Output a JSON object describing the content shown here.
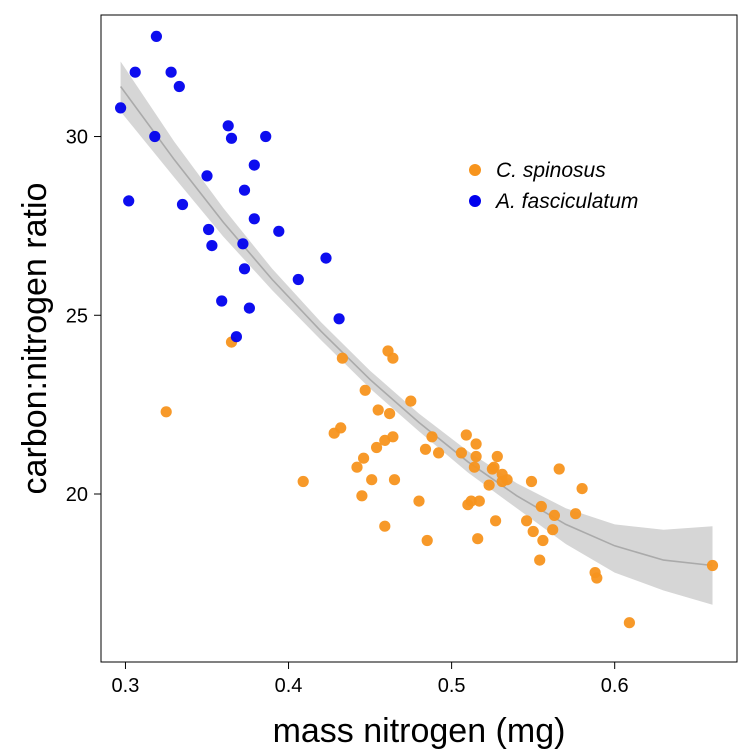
{
  "chart_data": {
    "type": "scatter",
    "xlabel": "mass nitrogen (mg)",
    "ylabel": "carbon:nitrogen ratio",
    "xlim": [
      0.285,
      0.675
    ],
    "ylim": [
      15.3,
      33.4
    ],
    "x_ticks": [
      0.3,
      0.4,
      0.5,
      0.6
    ],
    "x_tick_labels": [
      "0.3",
      "0.4",
      "0.5",
      "0.6"
    ],
    "y_ticks": [
      20,
      25,
      30
    ],
    "y_tick_labels": [
      "20",
      "25",
      "30"
    ],
    "grid": false,
    "legend_position": "top-right",
    "series": [
      {
        "name": "C. spinosus",
        "color": "#F7941D",
        "points": [
          [
            0.325,
            22.3
          ],
          [
            0.365,
            24.25
          ],
          [
            0.409,
            20.35
          ],
          [
            0.428,
            21.7
          ],
          [
            0.432,
            21.85
          ],
          [
            0.433,
            23.8
          ],
          [
            0.442,
            20.75
          ],
          [
            0.445,
            19.95
          ],
          [
            0.446,
            21.0
          ],
          [
            0.447,
            22.9
          ],
          [
            0.451,
            20.4
          ],
          [
            0.454,
            21.3
          ],
          [
            0.455,
            22.35
          ],
          [
            0.459,
            19.1
          ],
          [
            0.459,
            21.5
          ],
          [
            0.461,
            24.0
          ],
          [
            0.462,
            22.25
          ],
          [
            0.464,
            23.8
          ],
          [
            0.464,
            21.6
          ],
          [
            0.465,
            20.4
          ],
          [
            0.475,
            22.6
          ],
          [
            0.48,
            19.8
          ],
          [
            0.484,
            21.25
          ],
          [
            0.485,
            18.7
          ],
          [
            0.488,
            21.6
          ],
          [
            0.492,
            21.15
          ],
          [
            0.506,
            21.15
          ],
          [
            0.509,
            21.65
          ],
          [
            0.51,
            19.7
          ],
          [
            0.512,
            19.8
          ],
          [
            0.514,
            20.75
          ],
          [
            0.515,
            21.4
          ],
          [
            0.515,
            21.05
          ],
          [
            0.516,
            18.75
          ],
          [
            0.517,
            19.8
          ],
          [
            0.523,
            20.25
          ],
          [
            0.525,
            20.7
          ],
          [
            0.526,
            20.75
          ],
          [
            0.527,
            19.25
          ],
          [
            0.528,
            21.05
          ],
          [
            0.531,
            20.55
          ],
          [
            0.531,
            20.35
          ],
          [
            0.534,
            20.4
          ],
          [
            0.546,
            19.25
          ],
          [
            0.549,
            20.35
          ],
          [
            0.55,
            18.95
          ],
          [
            0.554,
            18.15
          ],
          [
            0.555,
            19.65
          ],
          [
            0.556,
            18.7
          ],
          [
            0.562,
            19.0
          ],
          [
            0.563,
            19.4
          ],
          [
            0.566,
            20.7
          ],
          [
            0.576,
            19.45
          ],
          [
            0.58,
            20.15
          ],
          [
            0.588,
            17.8
          ],
          [
            0.589,
            17.65
          ],
          [
            0.609,
            16.4
          ],
          [
            0.66,
            18.0
          ]
        ]
      },
      {
        "name": "A. fasciculatum",
        "color": "#0000EE",
        "points": [
          [
            0.297,
            30.8
          ],
          [
            0.302,
            28.2
          ],
          [
            0.306,
            31.8
          ],
          [
            0.318,
            30.0
          ],
          [
            0.319,
            32.8
          ],
          [
            0.328,
            31.8
          ],
          [
            0.333,
            31.4
          ],
          [
            0.335,
            28.1
          ],
          [
            0.35,
            28.9
          ],
          [
            0.351,
            27.4
          ],
          [
            0.353,
            26.95
          ],
          [
            0.359,
            25.4
          ],
          [
            0.363,
            30.3
          ],
          [
            0.365,
            29.95
          ],
          [
            0.368,
            24.4
          ],
          [
            0.372,
            27.0
          ],
          [
            0.373,
            26.3
          ],
          [
            0.373,
            28.5
          ],
          [
            0.376,
            25.2
          ],
          [
            0.379,
            29.2
          ],
          [
            0.379,
            27.7
          ],
          [
            0.386,
            30.0
          ],
          [
            0.394,
            27.35
          ],
          [
            0.406,
            26.0
          ],
          [
            0.423,
            26.6
          ],
          [
            0.431,
            24.9
          ]
        ]
      }
    ],
    "fit": {
      "type": "quadratic",
      "color": "#AAAAAA",
      "band_color": "#D6D6D6",
      "x": [
        0.297,
        0.33,
        0.36,
        0.39,
        0.42,
        0.45,
        0.48,
        0.51,
        0.54,
        0.57,
        0.6,
        0.63,
        0.66
      ],
      "y": [
        31.4,
        29.35,
        27.6,
        26.0,
        24.55,
        23.2,
        22.0,
        20.9,
        19.95,
        19.15,
        18.55,
        18.15,
        18.0
      ],
      "lower": [
        30.7,
        28.85,
        27.2,
        25.7,
        24.3,
        22.95,
        21.75,
        20.6,
        19.6,
        18.6,
        17.8,
        17.3,
        16.9
      ],
      "upper": [
        32.1,
        29.85,
        28.0,
        26.3,
        24.8,
        23.45,
        22.25,
        21.2,
        20.3,
        19.6,
        19.15,
        19.0,
        19.1
      ]
    }
  }
}
